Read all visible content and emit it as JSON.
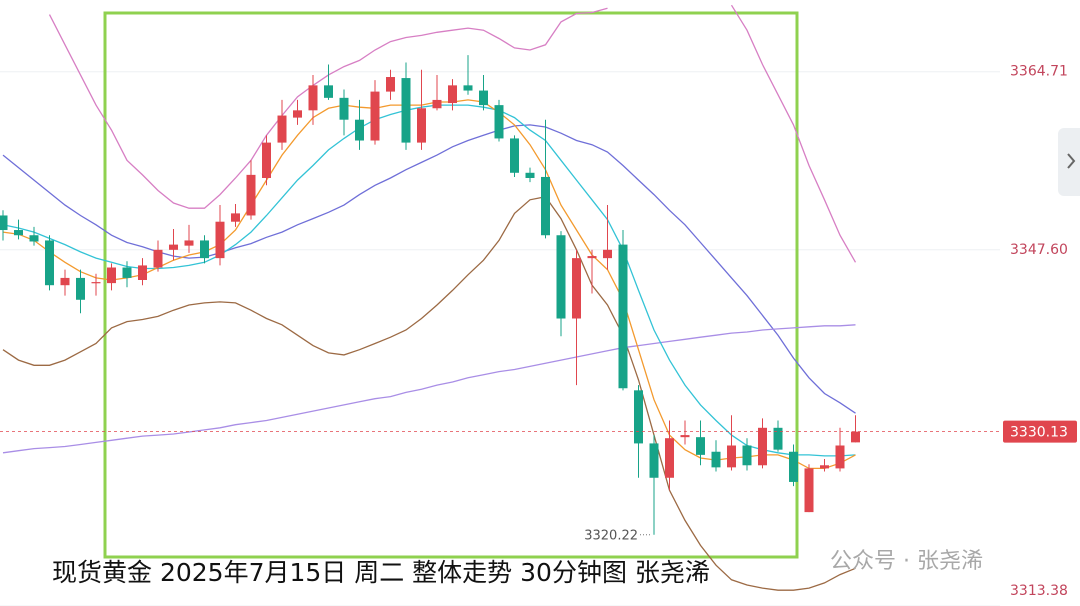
{
  "chart_data": {
    "type": "candlestick",
    "caption": "现货黄金 2025年7月15日 周二 整体走势 30分钟图 张尧浠",
    "watermark": "公众号 · 张尧浠",
    "ylim": [
      3313.38,
      3371.6
    ],
    "yticks": [
      3364.71,
      {
        "value": 3347.6,
        "label": "3347.60"
      },
      3313.38
    ],
    "grid": true,
    "up_color": "#e0464e",
    "down_color": "#17a388",
    "open": [
      3350.9,
      3349.5,
      3349.0,
      3348.5,
      3344.2,
      3344.9,
      3344.4,
      3344.4,
      3345.9,
      3344.7,
      3345.9,
      3347.6,
      3348.0,
      3348.5,
      3346.8,
      3350.3,
      3350.9,
      3354.5,
      3357.9,
      3360.3,
      3361.0,
      3363.4,
      3362.2,
      3360.1,
      3358.1,
      3362.8,
      3364.1,
      3357.9,
      3361.2,
      3361.7,
      3363.4,
      3362.9,
      3361.5,
      3358.3,
      3355.0,
      3354.6,
      3349.0,
      3341.0,
      3346.8,
      3346.8,
      3348.1,
      3334.1,
      3329.0,
      3325.7,
      3329.6,
      3329.6,
      3328.2,
      3326.7,
      3328.8,
      3326.9,
      3330.5,
      3328.2,
      3322.4,
      3326.6,
      3326.6,
      3329.1
    ],
    "high": [
      3351.4,
      3350.5,
      3349.8,
      3349.0,
      3345.7,
      3345.7,
      3345.3,
      3346.3,
      3346.5,
      3346.8,
      3348.5,
      3349.6,
      3350.0,
      3349.0,
      3351.9,
      3352.0,
      3356.2,
      3358.6,
      3362.0,
      3362.0,
      3364.4,
      3365.4,
      3363.0,
      3362.0,
      3363.9,
      3364.9,
      3365.6,
      3364.9,
      3364.4,
      3364.0,
      3366.3,
      3364.4,
      3362.0,
      3358.6,
      3355.5,
      3360.1,
      3349.4,
      3347.6,
      3347.6,
      3351.9,
      3349.5,
      3334.6,
      3329.8,
      3331.2,
      3331.2,
      3331.2,
      3329.3,
      3331.7,
      3329.5,
      3331.4,
      3331.2,
      3328.9,
      3327.0,
      3327.5,
      3330.5,
      3331.7
    ],
    "low": [
      3348.5,
      3348.6,
      3348.0,
      3343.7,
      3343.2,
      3341.5,
      3343.2,
      3343.7,
      3344.0,
      3344.2,
      3345.5,
      3346.6,
      3347.3,
      3346.3,
      3346.1,
      3349.8,
      3350.5,
      3353.8,
      3357.2,
      3359.6,
      3359.6,
      3362.0,
      3358.6,
      3357.2,
      3357.7,
      3362.0,
      3357.2,
      3357.2,
      3361.0,
      3361.0,
      3362.5,
      3361.0,
      3358.0,
      3354.6,
      3354.1,
      3348.7,
      3339.3,
      3334.6,
      3343.4,
      3345.7,
      3334.1,
      3325.7,
      3320.22,
      3324.5,
      3328.9,
      3326.9,
      3326.3,
      3326.4,
      3326.4,
      3326.6,
      3328.2,
      3324.9,
      3322.4,
      3326.3,
      3326.3,
      3329.1
    ],
    "close": [
      3349.5,
      3349.0,
      3348.4,
      3344.2,
      3344.9,
      3342.8,
      3344.5,
      3345.9,
      3344.9,
      3346.1,
      3347.6,
      3348.1,
      3348.5,
      3346.8,
      3350.3,
      3351.1,
      3354.8,
      3357.9,
      3360.5,
      3361.0,
      3363.4,
      3362.2,
      3360.1,
      3358.1,
      3362.8,
      3364.2,
      3357.9,
      3361.2,
      3362.0,
      3363.4,
      3362.9,
      3361.5,
      3358.3,
      3355.0,
      3354.5,
      3349.0,
      3341.0,
      3346.8,
      3347.0,
      3347.6,
      3334.3,
      3329.0,
      3325.7,
      3329.5,
      3329.8,
      3327.9,
      3326.7,
      3328.8,
      3326.9,
      3330.5,
      3328.4,
      3325.3,
      3326.6,
      3326.9,
      3328.8,
      3330.13
    ],
    "low_annotation": {
      "label": "3320.22",
      "index": 42
    },
    "last_price": {
      "value": 3330.13,
      "label": "3330.13",
      "color": "#e0464e"
    },
    "lines": [
      {
        "color": "#d77fc4",
        "values": [
          null,
          null,
          null,
          3370.2,
          3367.3,
          3364.4,
          3361.5,
          3359.1,
          3356.2,
          3354.8,
          3353.3,
          3352.1,
          3351.6,
          3351.6,
          3352.9,
          3354.5,
          3356.2,
          3358.6,
          3360.5,
          3362.3,
          3363.4,
          3364.4,
          3365.2,
          3365.8,
          3366.8,
          3367.6,
          3368.0,
          3368.2,
          3368.5,
          3368.7,
          3368.9,
          3368.7,
          3367.9,
          3367.0,
          3366.8,
          3367.3,
          3369.5,
          3370.3,
          3370.4,
          3370.8,
          null,
          null,
          null,
          null,
          null,
          null,
          null,
          3371.1,
          3368.7,
          3365.4,
          3362.5,
          3359.6,
          3355.7,
          3352.4,
          3349.0,
          3346.4
        ]
      },
      {
        "color": "#9c6a44",
        "values": [
          3338.0,
          3337.0,
          3336.5,
          3336.5,
          3337.0,
          3337.8,
          3338.6,
          3340.1,
          3340.7,
          3340.9,
          3341.2,
          3341.8,
          3342.3,
          3342.5,
          3342.6,
          3342.5,
          3341.8,
          3341.0,
          3340.4,
          3339.4,
          3338.4,
          3337.7,
          3337.5,
          3338.0,
          3338.6,
          3339.2,
          3339.9,
          3341.0,
          3342.3,
          3343.7,
          3345.2,
          3346.6,
          3348.5,
          3351.1,
          3352.4,
          3352.7,
          3350.6,
          3347.6,
          3344.2,
          3342.3,
          3339.4,
          3335.1,
          3329.8,
          3324.5,
          3321.6,
          3319.2,
          3317.3,
          3315.9,
          3315.4,
          3315.1,
          3314.9,
          3314.9,
          3315.1,
          3315.6,
          3316.4,
          3317.0
        ]
      },
      {
        "color": "#6f6fd8",
        "values": [
          3356.7,
          3355.5,
          3354.3,
          3353.1,
          3351.9,
          3350.9,
          3350.0,
          3349.0,
          3348.3,
          3347.9,
          3347.4,
          3347.0,
          3346.8,
          3346.9,
          3347.3,
          3347.8,
          3348.2,
          3348.8,
          3349.3,
          3350.0,
          3350.6,
          3351.2,
          3351.9,
          3352.9,
          3353.8,
          3354.5,
          3355.3,
          3356.0,
          3356.7,
          3357.5,
          3358.1,
          3358.6,
          3359.1,
          3359.5,
          3359.6,
          3359.4,
          3358.8,
          3358.1,
          3357.7,
          3357.0,
          3355.7,
          3354.3,
          3352.9,
          3351.4,
          3350.0,
          3348.3,
          3346.6,
          3344.9,
          3343.2,
          3341.3,
          3339.4,
          3337.2,
          3335.3,
          3333.8,
          3332.9,
          3331.9
        ]
      },
      {
        "color": "#a98ee6",
        "values": [
          3328.1,
          3328.3,
          3328.5,
          3328.6,
          3328.7,
          3328.9,
          3329.1,
          3329.3,
          3329.5,
          3329.7,
          3329.8,
          3329.9,
          3330.1,
          3330.3,
          3330.5,
          3330.8,
          3331.0,
          3331.2,
          3331.5,
          3331.8,
          3332.1,
          3332.4,
          3332.7,
          3333.0,
          3333.3,
          3333.5,
          3333.9,
          3334.2,
          3334.6,
          3334.9,
          3335.3,
          3335.6,
          3335.9,
          3336.1,
          3336.4,
          3336.7,
          3337.0,
          3337.3,
          3337.6,
          3337.9,
          3338.2,
          3338.4,
          3338.6,
          3338.8,
          3339.0,
          3339.2,
          3339.4,
          3339.6,
          3339.7,
          3339.9,
          3340.0,
          3340.1,
          3340.2,
          3340.3,
          3340.3,
          3340.4
        ]
      },
      {
        "color": "#33c3d6",
        "values": [
          3350.0,
          3349.7,
          3349.3,
          3348.7,
          3348.1,
          3347.4,
          3346.8,
          3346.4,
          3346.0,
          3345.8,
          3345.8,
          3345.9,
          3346.1,
          3346.4,
          3347.1,
          3348.1,
          3349.3,
          3350.9,
          3352.6,
          3354.3,
          3355.7,
          3357.2,
          3358.3,
          3359.3,
          3360.1,
          3360.6,
          3361.0,
          3361.3,
          3361.5,
          3361.5,
          3361.5,
          3361.3,
          3361.0,
          3360.3,
          3359.1,
          3358.1,
          3356.2,
          3354.3,
          3352.4,
          3350.5,
          3347.6,
          3343.7,
          3339.9,
          3337.0,
          3334.6,
          3332.7,
          3331.2,
          3329.8,
          3328.8,
          3328.4,
          3328.1,
          3327.9,
          3327.9,
          3327.8,
          3327.8,
          3327.9
        ]
      },
      {
        "color": "#f39a2e",
        "values": [
          3349.3,
          3349.1,
          3348.5,
          3347.4,
          3346.4,
          3345.5,
          3344.9,
          3344.7,
          3344.9,
          3345.2,
          3345.9,
          3346.6,
          3347.1,
          3347.4,
          3348.1,
          3349.5,
          3351.9,
          3354.3,
          3356.7,
          3358.6,
          3360.3,
          3361.2,
          3361.5,
          3361.3,
          3361.2,
          3361.5,
          3361.5,
          3361.5,
          3361.8,
          3361.8,
          3362.0,
          3361.8,
          3360.8,
          3359.6,
          3357.7,
          3355.3,
          3351.9,
          3349.5,
          3347.1,
          3345.7,
          3342.8,
          3338.0,
          3333.2,
          3329.8,
          3328.4,
          3327.6,
          3327.4,
          3327.6,
          3327.7,
          3327.9,
          3327.9,
          3327.4,
          3326.6,
          3326.6,
          3327.1,
          3327.9
        ]
      }
    ]
  }
}
